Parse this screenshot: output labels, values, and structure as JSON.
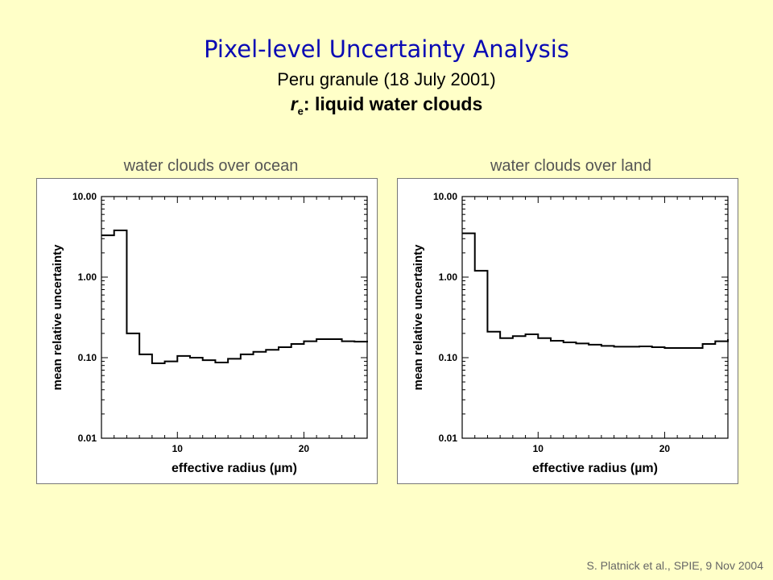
{
  "title": "Pixel-level Uncertainty Analysis",
  "subtitle": "Peru granule (18 July 2001)",
  "subtitle2": {
    "symbol": "r",
    "subscript": "e",
    "text": ": liquid water clouds"
  },
  "credit": "S. Platnick et al., SPIE, 9 Nov  2004",
  "chart_data": [
    {
      "type": "line",
      "title": "water clouds over ocean",
      "xlabel": "effective radius (µm)",
      "ylabel": "mean relative uncertainty",
      "yscale": "log",
      "xlim": [
        4,
        25
      ],
      "ylim": [
        0.01,
        10
      ],
      "xticks": [
        10,
        20
      ],
      "yticks": [
        0.01,
        0.1,
        1,
        10
      ],
      "ytick_labels": [
        "0.01",
        "0.10",
        "1.00",
        "10.00"
      ],
      "grid": false,
      "step": "post",
      "x": [
        4,
        5,
        6,
        7,
        8,
        9,
        10,
        11,
        12,
        13,
        14,
        15,
        16,
        17,
        18,
        19,
        20,
        21,
        22,
        23,
        24,
        25
      ],
      "y": [
        3.3,
        3.8,
        0.2,
        0.11,
        0.085,
        0.09,
        0.105,
        0.1,
        0.093,
        0.087,
        0.097,
        0.11,
        0.118,
        0.125,
        0.135,
        0.148,
        0.16,
        0.17,
        0.17,
        0.16,
        0.158,
        0.155
      ]
    },
    {
      "type": "line",
      "title": "water clouds over land",
      "xlabel": "effective radius (µm)",
      "ylabel": "mean relative uncertainty",
      "yscale": "log",
      "xlim": [
        4,
        25
      ],
      "ylim": [
        0.01,
        10
      ],
      "xticks": [
        10,
        20
      ],
      "yticks": [
        0.01,
        0.1,
        1,
        10
      ],
      "ytick_labels": [
        "0.01",
        "0.10",
        "1.00",
        "10.00"
      ],
      "grid": false,
      "step": "post",
      "x": [
        4,
        5,
        6,
        7,
        8,
        9,
        10,
        11,
        12,
        13,
        14,
        15,
        16,
        17,
        18,
        19,
        20,
        21,
        22,
        23,
        24,
        25
      ],
      "y": [
        3.5,
        1.2,
        0.21,
        0.175,
        0.185,
        0.195,
        0.175,
        0.162,
        0.155,
        0.15,
        0.145,
        0.14,
        0.137,
        0.137,
        0.138,
        0.135,
        0.132,
        0.132,
        0.132,
        0.148,
        0.16,
        0.17
      ]
    }
  ]
}
